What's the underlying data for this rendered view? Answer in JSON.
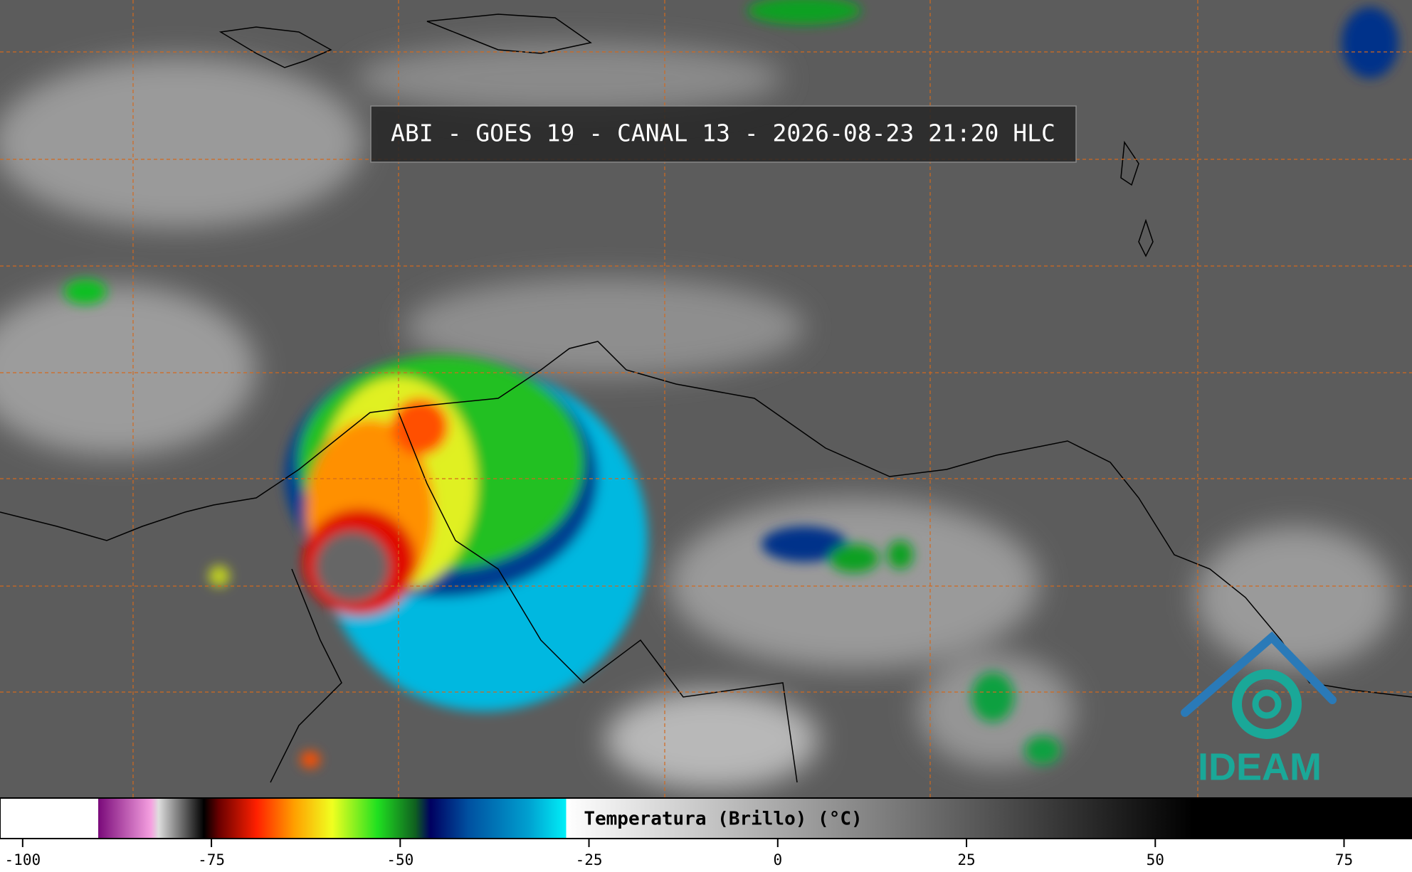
{
  "header": {
    "title": "ABI - GOES 19 - CANAL 13 - 2026-08-23 21:20 HLC"
  },
  "logo": {
    "text": "IDEAM"
  },
  "colorbar": {
    "label": "Temperatura (Brillo) (°C)",
    "lim": [
      -103,
      84
    ],
    "ticks": [
      -100,
      -75,
      -50,
      -25,
      0,
      25,
      50,
      75
    ],
    "stops": [
      {
        "value": -103,
        "color": "#ffffff"
      },
      {
        "value": -90,
        "color": "#ffffff"
      },
      {
        "value": -90,
        "color": "#7a0a7a"
      },
      {
        "value": -83,
        "color": "#f5a0e0"
      },
      {
        "value": -82,
        "color": "#dddddd"
      },
      {
        "value": -76,
        "color": "#000000"
      },
      {
        "value": -74,
        "color": "#6a0000"
      },
      {
        "value": -69,
        "color": "#ff2000"
      },
      {
        "value": -64,
        "color": "#ffa000"
      },
      {
        "value": -59,
        "color": "#f0ff20"
      },
      {
        "value": -53,
        "color": "#20e020"
      },
      {
        "value": -48,
        "color": "#106020"
      },
      {
        "value": -46,
        "color": "#000060"
      },
      {
        "value": -41,
        "color": "#0050a0"
      },
      {
        "value": -33,
        "color": "#00a0d0"
      },
      {
        "value": -28,
        "color": "#00f0f8"
      },
      {
        "value": -28,
        "color": "#ffffff"
      },
      {
        "value": 55,
        "color": "#000000"
      },
      {
        "value": 84,
        "color": "#000000"
      }
    ]
  }
}
